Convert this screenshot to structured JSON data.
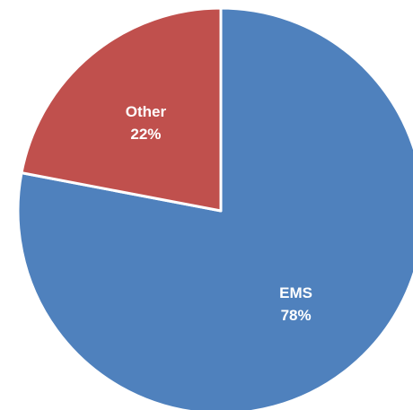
{
  "chart_data": {
    "type": "pie",
    "title": "",
    "slices": [
      {
        "label": "EMS",
        "value": 78,
        "percent_label": "78%",
        "color": "#4F81BD"
      },
      {
        "label": "Other",
        "value": 22,
        "percent_label": "22%",
        "color": "#C0504D"
      }
    ],
    "start_angle_deg": 0,
    "direction": "clockwise",
    "border_color": "#FFFFFF",
    "legend": "none"
  }
}
